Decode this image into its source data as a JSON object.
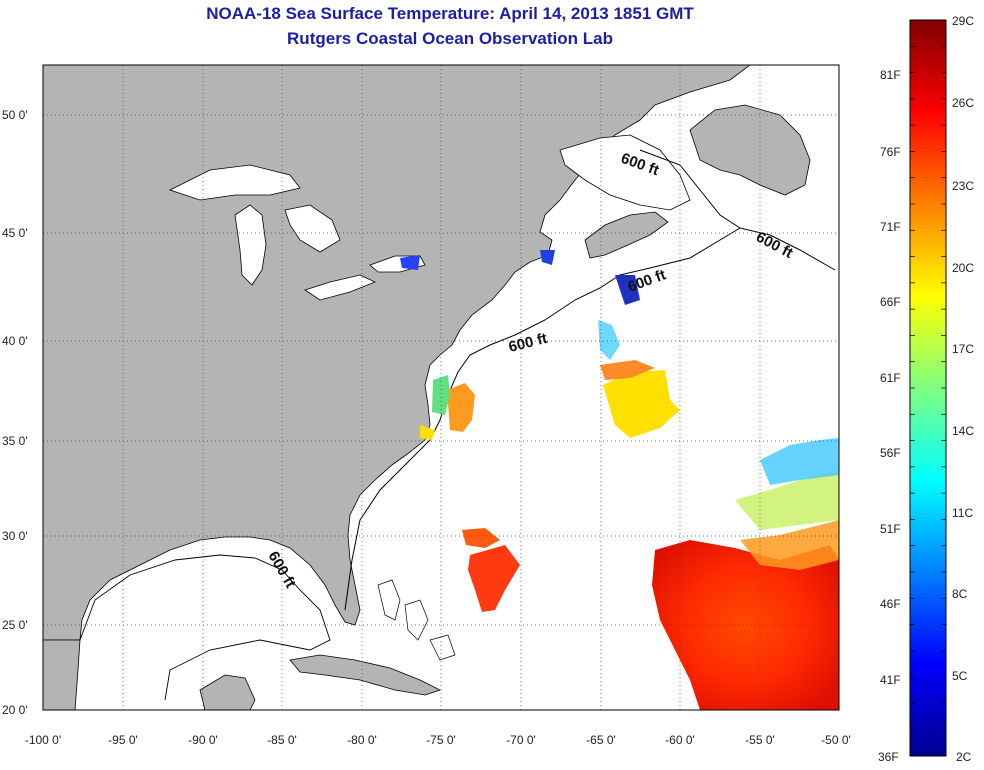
{
  "header": {
    "title": "NOAA-18 Sea Surface Temperature:  April 14, 2013 1851 GMT",
    "subtitle": "Rutgers Coastal Ocean Observation Lab"
  },
  "map": {
    "lat_labels": [
      "50 0'",
      "45 0'",
      "40 0'",
      "35 0'",
      "30 0'",
      "25 0'",
      "20 0'"
    ],
    "lon_labels": [
      "-100 0'",
      "-95 0'",
      "-90 0'",
      "-85 0'",
      "-80 0'",
      "-75 0'",
      "-70 0'",
      "-65 0'",
      "-60 0'",
      "-55 0'",
      "-50 0'"
    ],
    "isobath_label": "600 ft",
    "colors": {
      "land": "#b4b4b4",
      "ocean": "#ffffff",
      "frame": "#000000"
    }
  },
  "colorbar": {
    "fahrenheit": [
      "81F",
      "76F",
      "71F",
      "66F",
      "61F",
      "56F",
      "51F",
      "46F",
      "41F",
      "36F"
    ],
    "celsius": [
      "29C",
      "26C",
      "23C",
      "20C",
      "17C",
      "14C",
      "11C",
      "8C",
      "5C",
      "2C"
    ],
    "stops": [
      "#00008f",
      "#0000ff",
      "#0080ff",
      "#00ffff",
      "#80ff80",
      "#ffff00",
      "#ff8000",
      "#ff0000",
      "#800000"
    ]
  }
}
